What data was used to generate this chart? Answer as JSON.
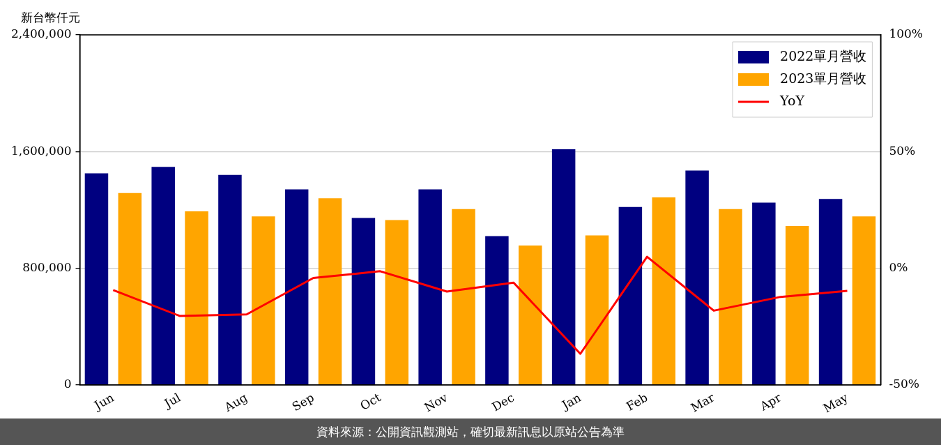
{
  "chart_data": {
    "type": "bar",
    "ylabel": "新台幣仟元",
    "categories": [
      "Jun",
      "Jul",
      "Aug",
      "Sep",
      "Oct",
      "Nov",
      "Dec",
      "Jan",
      "Feb",
      "Mar",
      "Apr",
      "May"
    ],
    "series": [
      {
        "name": "2022單月營收",
        "color": "#000080",
        "values": [
          1450000,
          1495000,
          1440000,
          1340000,
          1145000,
          1340000,
          1020000,
          1615000,
          1220000,
          1470000,
          1250000,
          1275000
        ]
      },
      {
        "name": "2023單月營收",
        "color": "#ffa500",
        "values": [
          1315000,
          1190000,
          1155000,
          1280000,
          1130000,
          1205000,
          955000,
          1025000,
          1285000,
          1205000,
          1090000,
          1155000
        ]
      },
      {
        "name": "YoY",
        "color": "#ff0000",
        "type": "line",
        "axis": "y2",
        "marker": "none",
        "line_style": "solid",
        "values": [
          -9.4,
          -20.5,
          -19.8,
          -4.2,
          -1.3,
          -10,
          -6.2,
          -36.7,
          4.9,
          -18.2,
          -12.3,
          -9.7
        ]
      }
    ],
    "ylim": [
      0,
      2400000
    ],
    "yticks": [
      {
        "value": 0,
        "label": "0"
      },
      {
        "value": 800000,
        "label": "800,000"
      },
      {
        "value": 1600000,
        "label": "1,600,000"
      },
      {
        "value": 2400000,
        "label": "2,400,000"
      }
    ],
    "y2lim": [
      -50,
      100
    ],
    "y2ticks": [
      {
        "value": -50,
        "label": "-50%"
      },
      {
        "value": 0,
        "label": "0%"
      },
      {
        "value": 50,
        "label": "50%"
      },
      {
        "value": 100,
        "label": "100%"
      }
    ],
    "grid": "y",
    "legend": "top right",
    "annotations": [
      "資料來源：公開資訊觀測站，確切最新訊息以原站公告為準"
    ]
  }
}
